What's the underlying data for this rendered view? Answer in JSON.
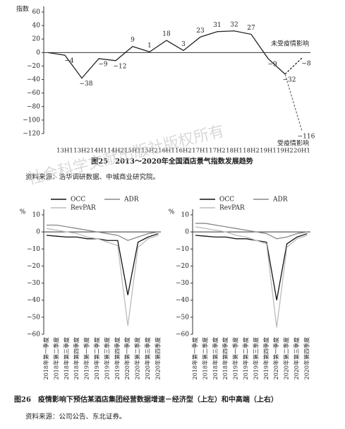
{
  "chart_data": [
    {
      "type": "line",
      "ylabel": "指数",
      "categories": [
        null,
        "13H1",
        "13H2",
        "14H1",
        "14H2",
        "15H1",
        "15H2",
        "16H1",
        "16H2",
        "17H1",
        "17H2",
        "18H1",
        "18H2",
        "19H1",
        "19H2",
        "20H1"
      ],
      "series": [
        {
          "color": "#222",
          "dashed": false,
          "values": [
            0,
            -4,
            -38,
            -9,
            -12,
            9,
            1,
            18,
            3,
            23,
            31,
            32,
            27,
            -9,
            -32,
            null
          ],
          "value_labels": [
            null,
            "−4",
            "−38",
            "−9",
            "−12",
            "9",
            "1",
            "18",
            "3",
            "23",
            "31",
            "32",
            "27",
            "−9",
            "−32",
            null
          ]
        },
        {
          "name": "未受疫情影响",
          "color": "#222",
          "dashed": true,
          "values": [
            null,
            null,
            null,
            null,
            null,
            null,
            null,
            null,
            null,
            null,
            null,
            null,
            null,
            null,
            -32,
            -8
          ],
          "value_labels": [
            null,
            null,
            null,
            null,
            null,
            null,
            null,
            null,
            null,
            null,
            null,
            null,
            null,
            null,
            null,
            "−8"
          ]
        },
        {
          "name": "受疫情影响",
          "color": "#777",
          "dashed": true,
          "values": [
            null,
            null,
            null,
            null,
            null,
            null,
            null,
            null,
            null,
            null,
            null,
            null,
            null,
            null,
            -32,
            -116
          ],
          "value_labels": [
            null,
            null,
            null,
            null,
            null,
            null,
            null,
            null,
            null,
            null,
            null,
            null,
            null,
            null,
            null,
            "−116"
          ]
        }
      ],
      "ylim": [
        -120,
        60
      ],
      "yticks": [
        60,
        40,
        20,
        0,
        {
          "value": -20,
          "label": "−20"
        },
        {
          "value": -40,
          "label": "−40"
        },
        {
          "value": -60,
          "label": "−60"
        },
        {
          "value": -80,
          "label": "−80"
        },
        {
          "value": -100,
          "label": "−100"
        },
        {
          "value": -120,
          "label": "−120"
        }
      ]
    },
    {
      "type": "line",
      "ylabel": "%",
      "categories": [
        "2018年第一季度",
        "2018年第二季度",
        "2018年第三季度",
        "2018年第四季度",
        "2019年第一季度",
        "2019年第二季度",
        "2019年第三季度",
        "2019年第四季度",
        "2020年第一季度",
        "2020年第二季度",
        "2020年第三季度",
        "2020年第四季度"
      ],
      "series": [
        {
          "name": "OCC",
          "color": "#111",
          "values": [
            -2,
            -2.5,
            -3,
            -3,
            -4,
            -4,
            -5,
            -5,
            -37,
            -6,
            -3,
            -1
          ]
        },
        {
          "name": "ADR",
          "color": "#888",
          "values": [
            4,
            4,
            3,
            2,
            1,
            0,
            -1,
            -2,
            -5,
            -3,
            -1,
            0
          ]
        },
        {
          "name": "RevPAR",
          "color": "#bbb",
          "values": [
            2,
            1,
            0,
            -1,
            -3,
            -4,
            -6,
            -8,
            -55,
            -9,
            -4,
            -2
          ]
        }
      ],
      "ylim": [
        -60,
        10
      ],
      "yticks": [
        10,
        0,
        {
          "value": -10,
          "label": "−10"
        },
        {
          "value": -20,
          "label": "−20"
        },
        {
          "value": -30,
          "label": "−30"
        },
        {
          "value": -40,
          "label": "−40"
        },
        {
          "value": -50,
          "label": "−50"
        },
        {
          "value": -60,
          "label": "−60"
        }
      ]
    },
    {
      "type": "line",
      "ylabel": "%",
      "categories": [
        "2018年第一季度",
        "2018年第二季度",
        "2018年第三季度",
        "2018年第四季度",
        "2019年第一季度",
        "2019年第二季度",
        "2019年第三季度",
        "2019年第四季度",
        "2020年第一季度",
        "2020年第二季度",
        "2020年第三季度",
        "2020年第四季度"
      ],
      "series": [
        {
          "name": "OCC",
          "color": "#111",
          "values": [
            -2,
            -2.5,
            -3,
            -3,
            -4,
            -4,
            -5,
            -6,
            -40,
            -7,
            -3,
            -1
          ]
        },
        {
          "name": "ADR",
          "color": "#888",
          "values": [
            5,
            5,
            4,
            3,
            2,
            1,
            0,
            -1,
            -4,
            -3,
            -1,
            0
          ]
        },
        {
          "name": "RevPAR",
          "color": "#bbb",
          "values": [
            3,
            2,
            1,
            0,
            -2,
            -3,
            -5,
            -7,
            -56,
            -9,
            -4,
            -2
          ]
        }
      ],
      "ylim": [
        -60,
        10
      ],
      "yticks": [
        10,
        0,
        {
          "value": -10,
          "label": "−10"
        },
        {
          "value": -20,
          "label": "−20"
        },
        {
          "value": -30,
          "label": "−30"
        },
        {
          "value": -40,
          "label": "−40"
        },
        {
          "value": -50,
          "label": "−50"
        },
        {
          "value": -60,
          "label": "−60"
        }
      ]
    }
  ],
  "captions": [
    "图25　2013～2020年全国酒店景气指数发展趋势",
    "图26　疫情影响下预估某酒店集团经营数据增速－经济型（上左）和中高端（上右）"
  ],
  "sources": [
    "资料来源：浩华调研数据、中城商业研究院。",
    "资料来源：公司公告、东北证券。"
  ],
  "watermark": "社会科学文献出版社版权所有"
}
